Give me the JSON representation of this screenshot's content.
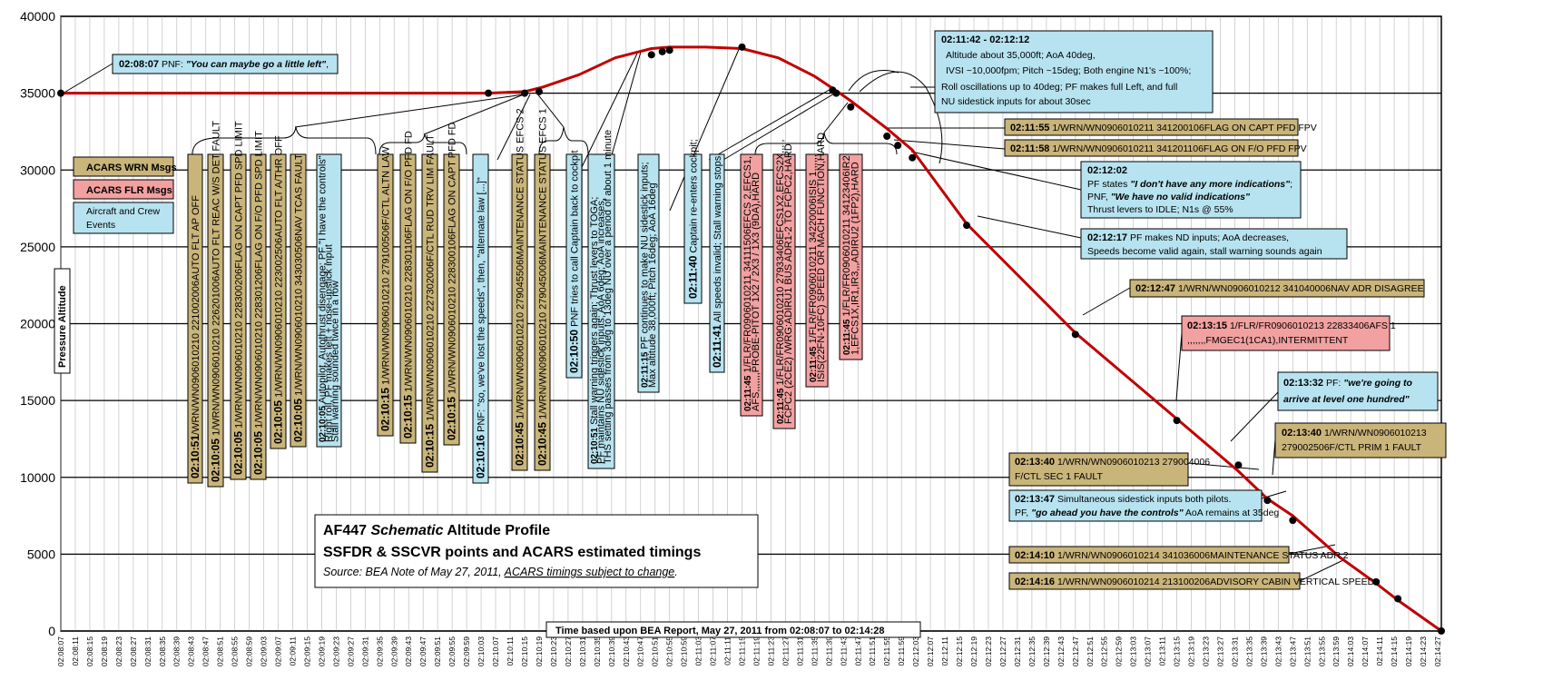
{
  "chart_data": {
    "type": "line",
    "ylabel": "Pressure Altitude",
    "ylim": [
      0,
      40000
    ],
    "yticks": [
      0,
      5000,
      10000,
      15000,
      20000,
      25000,
      30000,
      35000,
      40000
    ],
    "xticks": [
      "02:08:07",
      "02:08:11",
      "02:08:15",
      "02:08:19",
      "02:08:23",
      "02:08:27",
      "02:08:31",
      "02:08:35",
      "02:08:39",
      "02:08:43",
      "02:08:47",
      "02:08:51",
      "02:08:55",
      "02:08:59",
      "02:09:03",
      "02:09:07",
      "02:09:11",
      "02:09:15",
      "02:09:19",
      "02:09:23",
      "02:09:27",
      "02:09:31",
      "02:09:35",
      "02:09:39",
      "02:09:43",
      "02:09:47",
      "02:09:51",
      "02:09:55",
      "02:09:59",
      "02:10:03",
      "02:10:07",
      "02:10:11",
      "02:10:15",
      "02:10:19",
      "02:10:23",
      "02:10:27",
      "02:10:31",
      "02:10:35",
      "02:10:39",
      "02:10:43",
      "02:10:47",
      "02:10:51",
      "02:10:55",
      "02:10:59",
      "02:11:03",
      "02:11:07",
      "02:11:11",
      "02:11:15",
      "02:11:19",
      "02:11:23",
      "02:11:27",
      "02:11:31",
      "02:11:35",
      "02:11:39",
      "02:11:43",
      "02:11:47",
      "02:11:51",
      "02:11:55",
      "02:11:59",
      "02:12:03",
      "02:12:07",
      "02:12:11",
      "02:12:15",
      "02:12:19",
      "02:12:23",
      "02:12:27",
      "02:12:31",
      "02:12:35",
      "02:12:39",
      "02:12:43",
      "02:12:47",
      "02:12:51",
      "02:12:55",
      "02:12:59",
      "02:13:03",
      "02:13:07",
      "02:13:11",
      "02:13:15",
      "02:13:19",
      "02:13:23",
      "02:13:27",
      "02:13:31",
      "02:13:35",
      "02:13:39",
      "02:13:43",
      "02:13:47",
      "02:13:51",
      "02:13:55",
      "02:13:59",
      "02:14:03",
      "02:14:07",
      "02:14:11",
      "02:14:15",
      "02:14:19",
      "02:14:23",
      "02:14:27"
    ],
    "series": [
      {
        "color": "#c00000",
        "x": [
          "02:08:07",
          "02:10:05",
          "02:10:15",
          "02:10:20",
          "02:10:30",
          "02:10:40",
          "02:10:50",
          "02:10:55",
          "02:11:05",
          "02:11:15",
          "02:11:25",
          "02:11:35",
          "02:11:42",
          "02:11:45",
          "02:11:55",
          "02:12:02",
          "02:12:17",
          "02:12:47",
          "02:13:15",
          "02:13:32",
          "02:13:40",
          "02:13:47",
          "02:14:00",
          "02:14:10",
          "02:14:16",
          "02:14:28"
        ],
        "y": [
          35000,
          35000,
          35100,
          35400,
          36200,
          37300,
          37900,
          38000,
          38000,
          37900,
          37300,
          36100,
          35000,
          34500,
          32700,
          31300,
          26500,
          19400,
          13800,
          10400,
          8600,
          7500,
          4800,
          3100,
          2000,
          0
        ]
      }
    ],
    "points": [
      {
        "t": "02:08:07",
        "alt": 35000
      },
      {
        "t": "02:10:05",
        "alt": 35000
      },
      {
        "t": "02:10:15",
        "alt": 35000
      },
      {
        "t": "02:10:19",
        "alt": 35100
      },
      {
        "t": "02:10:50",
        "alt": 37500
      },
      {
        "t": "02:10:53",
        "alt": 37700
      },
      {
        "t": "02:10:55",
        "alt": 37800
      },
      {
        "t": "02:11:15",
        "alt": 38000
      },
      {
        "t": "02:11:40",
        "alt": 35200
      },
      {
        "t": "02:11:41",
        "alt": 35000
      },
      {
        "t": "02:11:45",
        "alt": 34100
      },
      {
        "t": "02:11:55",
        "alt": 32200
      },
      {
        "t": "02:11:58",
        "alt": 31600
      },
      {
        "t": "02:12:02",
        "alt": 30800
      },
      {
        "t": "02:12:17",
        "alt": 26400
      },
      {
        "t": "02:12:47",
        "alt": 19300
      },
      {
        "t": "02:13:15",
        "alt": 13700
      },
      {
        "t": "02:13:32",
        "alt": 10800
      },
      {
        "t": "02:13:40",
        "alt": 8500
      },
      {
        "t": "02:13:47",
        "alt": 7200
      },
      {
        "t": "02:14:10",
        "alt": 3200
      },
      {
        "t": "02:14:16",
        "alt": 2100
      },
      {
        "t": "02:14:28",
        "alt": 0
      }
    ]
  },
  "colors": {
    "wrn": "#c9b47a",
    "flr": "#f2a0a0",
    "evt": "#b7e3f0",
    "line": "#c00000"
  },
  "title_box": {
    "line1_a": "AF447 ",
    "line1_b": "Schematic",
    "line1_c": " Altitude Profile",
    "line2": "SSFDR & SSCVR points and ACARS estimated timings",
    "line3_a": "Source: BEA Note of May 27, 2011, ",
    "line3_b": "ACARS timings subject to change",
    "line3_c": "."
  },
  "time_note": "Time based upon BEA Report, May 27, 2011 from 02:08:07 to 02:14:28",
  "legend": {
    "wrn": "ACARS WRN Msgs",
    "flr": "ACARS FLR Msgs",
    "evt_1": "Aircraft and Crew",
    "evt_2": "Events"
  },
  "callouts": {
    "c1_t": "02:08:07",
    "c1_a": " PNF: ",
    "c1_b": "\"You can maybe go a little left\"",
    "c1_c": ",",
    "c2_t": "02:11:42 - 02:12:12",
    "c2_l1": "Altitude about 35,000ft; AoA 40deg,",
    "c2_l2": "IVSI ~10,000fpm; Pitch ~15deg; Both engine N1's ~100%;",
    "c2_l3": "Roll oscillations up to 40deg; PF makes full Left, and full",
    "c2_l4": "NU sidestick inputs for about 30sec",
    "c3_t": "02:11:55",
    "c3_m": " 1/WRN/WN0906010211 341200106FLAG ON CAPT PFD FPV",
    "c4_t": "02:11:58",
    "c4_m": " 1/WRN/WN0906010211 341201106FLAG ON F/O PFD FPV",
    "c5_t": "02:12:02",
    "c5_l1a": "PF states ",
    "c5_l1b": "\"I don't have any more indications\"",
    "c5_l1c": ";",
    "c5_l2a": "PNF, ",
    "c5_l2b": "\"We have no valid indications\"",
    "c5_l3": "Thrust levers to IDLE; N1s @ 55%",
    "c6_t": "02:12:17",
    "c6_l1": " PF makes ND inputs; AoA decreases,",
    "c6_l2": "Speeds become valid again, stall warning sounds again",
    "c7_t": "02:12:47",
    "c7_m": " 1/WRN/WN0906010212 341040006NAV ADR DISAGREE",
    "c8_t": "02:13:15",
    "c8_l1": " 1/FLR/FR0906010213 22833406AFS 1",
    "c8_l2": ",,,,,,,FMGEC1(1CA1),INTERMITTENT",
    "c9_t": "02:13:32",
    "c9_a": " PF: ",
    "c9_b": "\"we're going to",
    "c9_c": "arrive at level one hundred\"",
    "c10_t": "02:13:40",
    "c10_l1": " 1/WRN/WN0906010213",
    "c10_l2": "279002506F/CTL PRIM 1 FAULT",
    "c11_t": "02:13:40",
    "c11_l1": " 1/WRN/WN0906010213 279004006",
    "c11_l2": "F/CTL SEC 1 FAULT",
    "c12_t": "02:13:47",
    "c12_l1": " Simultaneous sidestick inputs both pilots.",
    "c12_l2a": "PF, ",
    "c12_l2b": "\"go ahead you have the controls\"",
    "c12_l2c": " AoA remains at 35deg",
    "c13_t": "02:14:10",
    "c13_m": " 1/WRN/WN0906010214 341036006MAINTENANCE STATUS ADR 2",
    "c14_t": "02:14:16",
    "c14_m": " 1/WRN/WN0906010214 213100206ADVISORY CABIN VERTICAL SPEED"
  },
  "vboxes": [
    {
      "kind": "wrn",
      "t": "02:10:51",
      "text": "/WRN/WN0906010210 221002006AUTO FLT AP OFF"
    },
    {
      "kind": "wrn",
      "t": "02:10:05",
      "text": " 1/WRN/WN0906010210 226201006AUTO FLT REAC W/S DET FAULT"
    },
    {
      "kind": "wrn",
      "t": "02:10:05",
      "text": " 1/WRN/WN0906010210 228300206FLAG ON CAPT PFD SPD LIMIT"
    },
    {
      "kind": "wrn",
      "t": "02:10:05",
      "text": " 1/WRN/WN0906010210 228301206FLAG ON F/O PFD SPD LIMIT"
    },
    {
      "kind": "wrn",
      "t": "02:10:05",
      "text": " 1/WRN/WN0906010210 223002506AUTO FLT A/THR OFF"
    },
    {
      "kind": "wrn",
      "t": "02:10:05",
      "text": " 1/WRN/WN0906010210 343030506NAV TCAS FAULT"
    },
    {
      "kind": "evt",
      "t": "02:10:05",
      "text": "  Autopilot, Autothrust disengage; PF \"I have the controls\"",
      "l2": "Right roll, PF makes left + nose-upstick input",
      "l3": "Stall warning sounded twice in a row"
    },
    {
      "kind": "wrn",
      "t": "02:10:15",
      "text": " 1/WRN/WN0906010210 279100506F/CTL ALTN LAW"
    },
    {
      "kind": "wrn",
      "t": "02:10:15",
      "text": " 1/WRN/WN0906010210 228301106FLAG ON F/O PFD FD"
    },
    {
      "kind": "wrn",
      "t": "02:10:15",
      "text": " 1/WRN/WN0906010210 227302006F/CTL RUD TRV LIM FAULT"
    },
    {
      "kind": "wrn",
      "t": "02:10:15",
      "text": " 1/WRN/WN0906010210 228300106FLAG ON CAPT PFD FD"
    },
    {
      "kind": "evt",
      "t": "02:10:16",
      "text": " PNF: \"so, we've lost the speeds\", then, \"alternate law [...]\""
    },
    {
      "kind": "wrn",
      "t": "02:10:45",
      "text": " 1/WRN/WN0906010210 279045506MAINTENANCE STATUS EFCS 2"
    },
    {
      "kind": "wrn",
      "t": "02:10:45",
      "text": " 1/WRN/WN0906010210 279045006MAINTENANCE STATUS EFCS 1"
    },
    {
      "kind": "evt",
      "t": "02:10:50",
      "text": " PNF tries to call Captain back to cockpit"
    },
    {
      "kind": "evt",
      "t": "02:10:51",
      "text": " Stall warning triggers again; Thrust levers to TOGA;",
      "l2": "PF maintains NU sidestick inputs; AoA 6deg; AoA increases,",
      "l3": "THS setting passes from 3deg to 13deg NU over a period of about 1 minute"
    },
    {
      "kind": "evt",
      "t": "02:11:15",
      "text": " PF continues to make NU sidestick inputs;",
      "l2": "Max altitude 38,000ft; Pitch 16deg; AoA 16deg"
    },
    {
      "kind": "evt",
      "t": "02:11:40",
      "text": " Captain re-enters cockpit;"
    },
    {
      "kind": "evt",
      "t": "02:11:41",
      "text": " All speeds invalid; Stall warning stops"
    },
    {
      "kind": "flr",
      "t": "02:11:45",
      "text": " 1/FLR/FR0906010211 34111506EFCS 2,EFCS1,",
      "l2": "AFS,,,,,,,PROBE-PITOT 1X2 / 2X3 / 1X3 (9DA),HARD"
    },
    {
      "kind": "flr",
      "t": "02:11:45",
      "text": " 1/FLR/FR0906010210 27933406EFCS1X2,EFCS2X,,,,,",
      "l2": "FCPC2 (2CE2) /WRG:ADIRU1 BUS ADR1-2 TO FCPC2,HARD"
    },
    {
      "kind": "flr",
      "t": "02:11:45",
      "text": " 1/FLR/FR0906010211 34220006ISIS 1,,,,,,",
      "l2": "ISIS(22FN-10FC) SPEED OR MACH FUNCTION,HARD"
    },
    {
      "kind": "flr",
      "t": "02:11:45",
      "text": " 1/FLR/FR0906010211 34123406IR2",
      "l2": "1,EFCS1X,IR1,IR3,,,ADIRU2 (1FP2),HARD"
    }
  ]
}
